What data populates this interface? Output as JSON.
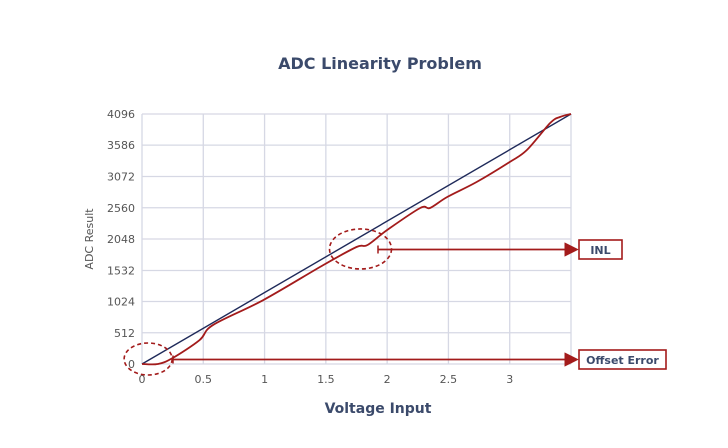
{
  "chart_data": {
    "type": "line",
    "title": "ADC Linearity Problem",
    "xlabel": "Voltage Input",
    "ylabel": "ADC Result",
    "xlim": [
      0,
      3.5
    ],
    "ylim": [
      0,
      4096
    ],
    "x_ticks": [
      0,
      0.5,
      1,
      1.5,
      2,
      2.5,
      3
    ],
    "x_tick_labels": [
      "0",
      "0.5",
      "1",
      "1.5",
      "2",
      "2.5",
      "3"
    ],
    "y_ticks": [
      0,
      512,
      1024,
      1532,
      2048,
      2560,
      3072,
      3586,
      4096
    ],
    "y_tick_labels": [
      "0",
      "512",
      "1024",
      "1532",
      "2048",
      "2560",
      "3072",
      "3586",
      "4096"
    ],
    "grid": true,
    "series": [
      {
        "color": "#1f2a5a",
        "x": [
          0,
          3.5
        ],
        "y": [
          0,
          4096
        ]
      },
      {
        "color": "#a31b1b",
        "x": [
          0,
          0.13,
          0.25,
          0.47,
          0.58,
          0.99,
          1.48,
          1.75,
          1.84,
          2.0,
          2.27,
          2.35,
          2.49,
          2.73,
          3.0,
          3.14,
          3.33,
          3.41,
          3.5
        ],
        "y": [
          0,
          0,
          98,
          393,
          640,
          1048,
          1622,
          1917,
          1950,
          2195,
          2556,
          2556,
          2736,
          2982,
          3310,
          3506,
          3948,
          4047,
          4096
        ]
      }
    ],
    "annotations": [
      {
        "label": "INL",
        "target_x": 1.75,
        "target_y": 1950
      },
      {
        "label": "Offset Error",
        "target_x": 0.05,
        "target_y": 0
      }
    ],
    "annotation_color": "#a31b1b"
  }
}
